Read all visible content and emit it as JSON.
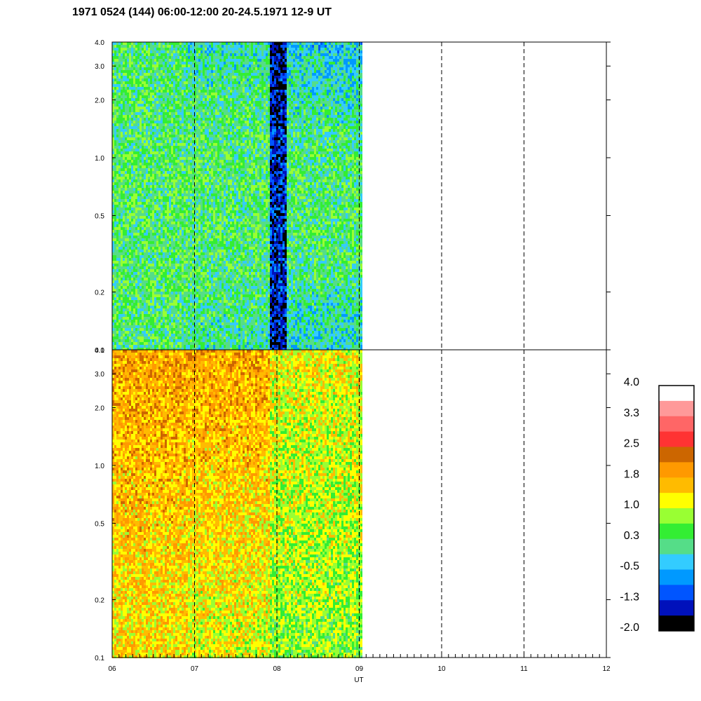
{
  "chart_data": {
    "type": "heatmap",
    "title": "1971 0524 (144) 06:00-12:00 20-24.5.1971  12-9 UT",
    "xlabel": "UT",
    "x_range": [
      6,
      12
    ],
    "x_ticks": [
      "06",
      "07",
      "08",
      "09",
      "10",
      "11",
      "12"
    ],
    "x_dashed_lines": [
      7,
      8,
      9,
      10,
      11
    ],
    "data_end_x": 9.03,
    "y_scale": "log",
    "y_range": [
      0.1,
      4.0
    ],
    "y_ticks": [
      {
        "value": 0.1,
        "label": "0.1"
      },
      {
        "value": 0.2,
        "label": "0.2"
      },
      {
        "value": 0.5,
        "label": "0.5"
      },
      {
        "value": 1.0,
        "label": "1.0"
      },
      {
        "value": 2.0,
        "label": "2.0"
      },
      {
        "value": 3.0,
        "label": "3.0"
      },
      {
        "value": 4.0,
        "label": "4.0"
      }
    ],
    "panels": [
      {
        "name": "",
        "dominant_levels": "-1.3 to 0.3",
        "segments": [
          {
            "x": [
              6.0,
              6.9
            ],
            "low": 0.1,
            "high": 0.3
          },
          {
            "x": [
              6.9,
              7.9
            ],
            "low": -0.5,
            "high": 0.3
          },
          {
            "x": [
              7.9,
              8.1
            ],
            "low": -2.0,
            "high": -1.3
          },
          {
            "x": [
              8.1,
              9.03
            ],
            "low": -1.3,
            "high": 0.3
          }
        ]
      },
      {
        "name": "",
        "dominant_levels": "0.3 to 1.8",
        "segments": [
          {
            "x": [
              6.0,
              6.9
            ],
            "low": 1.0,
            "high": 1.8
          },
          {
            "x": [
              6.9,
              7.9
            ],
            "low": 0.6,
            "high": 1.8
          },
          {
            "x": [
              7.9,
              9.03
            ],
            "low": 0.3,
            "high": 1.2
          }
        ]
      }
    ],
    "colorbar": {
      "labels": [
        "4.0",
        "3.3",
        "2.5",
        "1.8",
        "1.0",
        "0.3",
        "-0.5",
        "-1.3",
        "-2.0"
      ],
      "colors": [
        "#ffffff",
        "#ff9999",
        "#ff6666",
        "#ff3333",
        "#cc6600",
        "#ff9900",
        "#ffbb00",
        "#ffff00",
        "#99ff33",
        "#33ee33",
        "#55dd88",
        "#33ccff",
        "#0099ff",
        "#0055ff",
        "#0011bb",
        "#000000"
      ]
    }
  }
}
